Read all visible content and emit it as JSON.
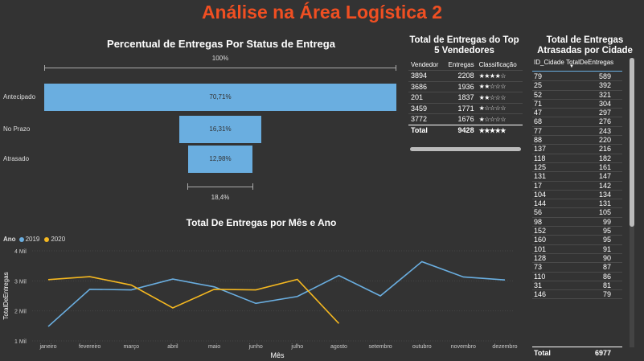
{
  "page_title": "Análise na Área Logística 2",
  "funnel": {
    "title": "Percentual de Entregas Por Status de Entrega",
    "top_label": "100%",
    "bottom_label": "18,4%",
    "items": [
      {
        "label": "Antecipado",
        "value": 70.71,
        "value_label": "70,71%"
      },
      {
        "label": "No Prazo",
        "value": 16.31,
        "value_label": "16,31%"
      },
      {
        "label": "Atrasado",
        "value": 12.98,
        "value_label": "12,98%"
      }
    ],
    "bar_color": "#6aaee0"
  },
  "top_sellers": {
    "title": "Total de Entregas do Top 5 Vendedores",
    "headers": [
      "Vendedor",
      "Entregas",
      "Classificação"
    ],
    "rows": [
      {
        "vendedor": "3894",
        "entregas": "2208",
        "stars": "★★★★☆"
      },
      {
        "vendedor": "3686",
        "entregas": "1936",
        "stars": "★★☆☆☆"
      },
      {
        "vendedor": "201",
        "entregas": "1837",
        "stars": "★★☆☆☆"
      },
      {
        "vendedor": "3459",
        "entregas": "1771",
        "stars": "★☆☆☆☆"
      },
      {
        "vendedor": "3772",
        "entregas": "1676",
        "stars": "★☆☆☆☆"
      }
    ],
    "total_label": "Total",
    "total_value": "9428",
    "total_stars": "★★★★★"
  },
  "late_cities": {
    "title": "Total de Entregas Atrasadas por Cidade",
    "headers": [
      "ID_Cidade",
      "TotalDeEntregas"
    ],
    "rows": [
      [
        "79",
        "589"
      ],
      [
        "25",
        "392"
      ],
      [
        "52",
        "321"
      ],
      [
        "71",
        "304"
      ],
      [
        "47",
        "297"
      ],
      [
        "68",
        "276"
      ],
      [
        "77",
        "243"
      ],
      [
        "88",
        "220"
      ],
      [
        "137",
        "216"
      ],
      [
        "118",
        "182"
      ],
      [
        "125",
        "161"
      ],
      [
        "131",
        "147"
      ],
      [
        "17",
        "142"
      ],
      [
        "104",
        "134"
      ],
      [
        "144",
        "131"
      ],
      [
        "56",
        "105"
      ],
      [
        "98",
        "99"
      ],
      [
        "152",
        "95"
      ],
      [
        "160",
        "95"
      ],
      [
        "101",
        "91"
      ],
      [
        "128",
        "90"
      ],
      [
        "73",
        "87"
      ],
      [
        "110",
        "86"
      ],
      [
        "31",
        "81"
      ],
      [
        "146",
        "79"
      ]
    ],
    "total_label": "Total",
    "total_value": "6977"
  },
  "line_chart": {
    "title": "Total De Entregas por Mês e Ano",
    "legend_title": "Ano",
    "xlabel": "Mês",
    "ylabel": "TotalDeEntregas"
  },
  "chart_data": {
    "type": "line",
    "title": "Total De Entregas por Mês e Ano",
    "xlabel": "Mês",
    "ylabel": "TotalDeEntregas",
    "categories": [
      "janeiro",
      "fevereiro",
      "março",
      "abril",
      "maio",
      "junho",
      "julho",
      "agosto",
      "setembro",
      "outubro",
      "novembro",
      "dezembro"
    ],
    "yticks": [
      "1 Mil",
      "2 Mil",
      "3 Mil",
      "4 Mil"
    ],
    "ylim": [
      1000,
      4000
    ],
    "series": [
      {
        "name": "2019",
        "color": "#6aaee0",
        "values": [
          1480,
          2720,
          2700,
          3060,
          2800,
          2250,
          2480,
          3180,
          2500,
          3640,
          3130,
          3030
        ]
      },
      {
        "name": "2020",
        "color": "#f5b820",
        "values": [
          3040,
          3140,
          2860,
          2100,
          2720,
          2700,
          3050,
          1580,
          null,
          null,
          null,
          null
        ]
      }
    ],
    "legend": "top-left"
  }
}
